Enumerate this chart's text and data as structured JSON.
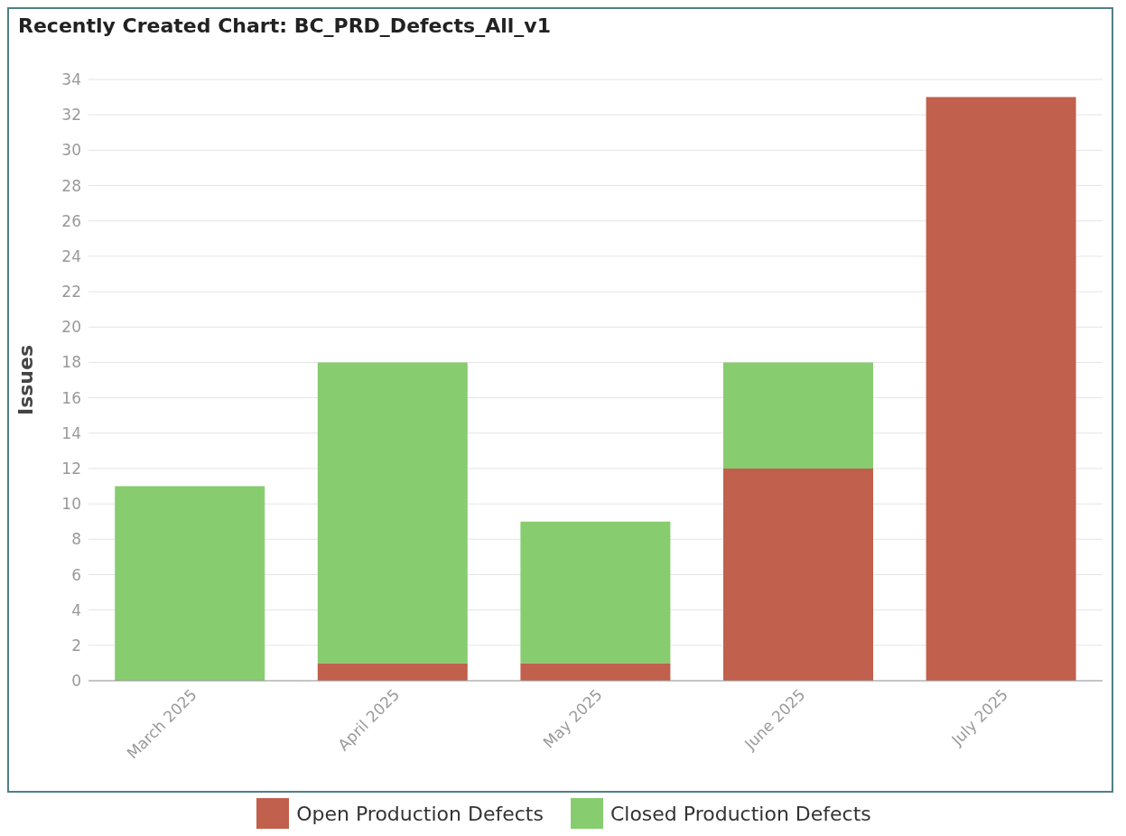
{
  "chart_data": {
    "type": "bar",
    "title": "Recently Created Chart: BC_PRD_Defects_All_v1",
    "ylabel": "Issues",
    "categories": [
      "March 2025",
      "April 2025",
      "May 2025",
      "June 2025",
      "July 2025"
    ],
    "series": [
      {
        "name": "Open Production Defects",
        "color": "#c0604d",
        "values": [
          0,
          1,
          1,
          12,
          33
        ]
      },
      {
        "name": "Closed Production Defects",
        "color": "#88cc70",
        "values": [
          11,
          17,
          8,
          6,
          0
        ]
      }
    ],
    "stacked": true,
    "ylim": [
      0,
      34
    ],
    "yticks": [
      0,
      2,
      4,
      6,
      8,
      10,
      12,
      14,
      16,
      18,
      20,
      22,
      24,
      26,
      28,
      30,
      32,
      34
    ],
    "grid": "y",
    "legend": "bottom"
  }
}
